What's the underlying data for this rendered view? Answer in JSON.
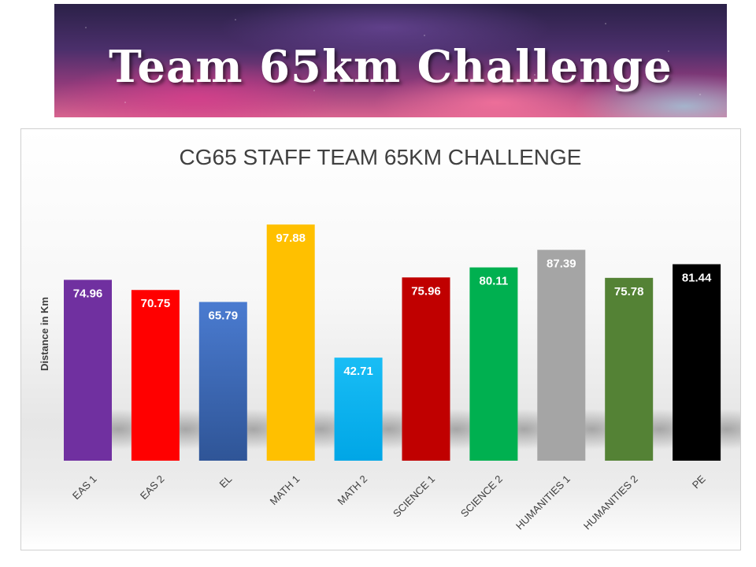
{
  "banner": {
    "title": "Team 65km Challenge"
  },
  "chart_data": {
    "type": "bar",
    "title": "CG65 STAFF TEAM 65KM CHALLENGE",
    "xlabel": "",
    "ylabel": "Distance in Km",
    "ylim": [
      0,
      110
    ],
    "grid": false,
    "legend": "none",
    "categories": [
      "EAS 1",
      "EAS 2",
      "EL",
      "MATH 1",
      "MATH 2",
      "SCIENCE 1",
      "SCIENCE 2",
      "HUMANITIES 1",
      "HUMANITIES 2",
      "PE"
    ],
    "values": [
      74.96,
      70.75,
      65.79,
      97.88,
      42.71,
      75.96,
      80.11,
      87.39,
      75.78,
      81.44
    ],
    "value_labels": [
      "74.96",
      "70.75",
      "65.79",
      "97.88",
      "42.71",
      "75.96",
      "80.11",
      "87.39",
      "75.78",
      "81.44"
    ],
    "colors": [
      "#7030a0",
      "#ff0000",
      "#4472c4",
      "#ffc000",
      "#00b0f0",
      "#c00000",
      "#00b050",
      "#a5a5a5",
      "#548235",
      "#000000"
    ]
  }
}
